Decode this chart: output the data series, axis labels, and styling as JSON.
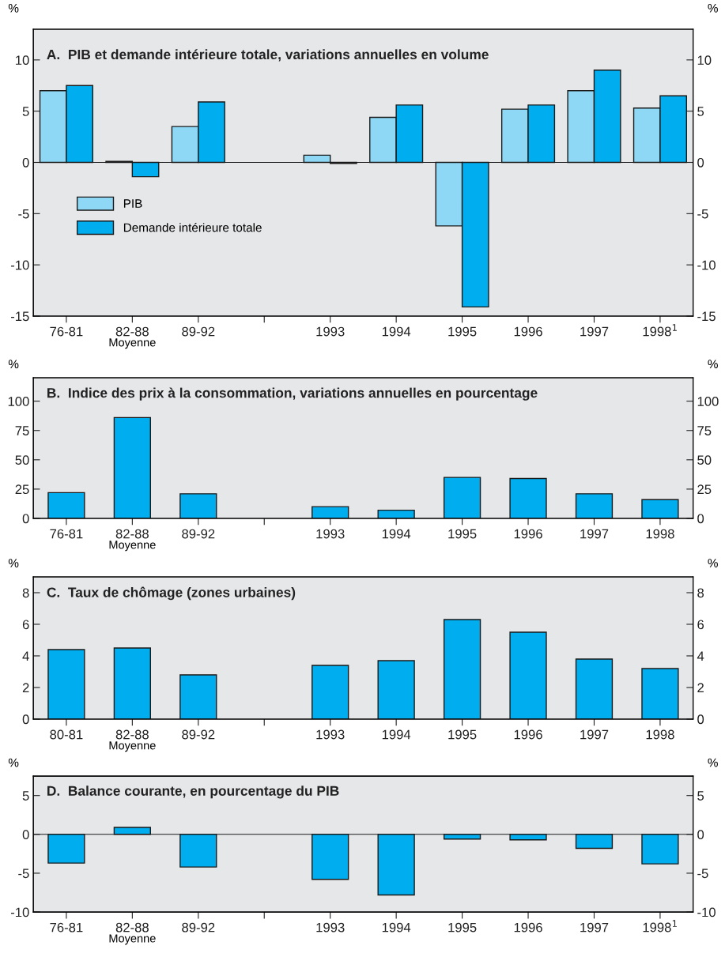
{
  "chart_data": [
    {
      "type": "bar",
      "title": "A.  PIB et demande intérieure totale, variations annuelles en volume",
      "ylabel": "%",
      "y2label": "%",
      "categories": [
        "76-81",
        "82-88",
        "89-92",
        null,
        "1993",
        "1994",
        "1995",
        "1996",
        "1997",
        "1998$^{1}$"
      ],
      "series": [
        {
          "name": "PIB",
          "color": "#8fd8f5",
          "values": [
            7.0,
            0.1,
            3.5,
            null,
            0.7,
            4.4,
            -6.2,
            5.2,
            7.0,
            5.3
          ]
        },
        {
          "name": "Demande intérieure totale",
          "color": "#00aeef",
          "values": [
            7.5,
            -1.4,
            5.9,
            null,
            -0.1,
            5.6,
            -14.1,
            5.6,
            9.0,
            6.5
          ]
        }
      ],
      "ylim": [
        -15,
        13
      ],
      "yticks": [
        -15,
        -10,
        -5,
        0,
        5,
        10
      ],
      "y2lim": [
        -15,
        13
      ],
      "y2ticks": [
        -15,
        -10,
        -5,
        0,
        5,
        10
      ],
      "annotations": [
        "Moyenne"
      ],
      "legend": "center left",
      "ref_lines": [
        {
          "axis": "y",
          "value": 0,
          "color": "#1a1a1a"
        }
      ],
      "grid": false
    },
    {
      "type": "bar",
      "title": "B.  Indice des prix à la consommation, variations annuelles en pourcentage",
      "ylabel": "%",
      "y2label": "%",
      "categories": [
        "76-81",
        "82-88",
        "89-92",
        null,
        "1993",
        "1994",
        "1995",
        "1996",
        "1997",
        "1998"
      ],
      "series": [
        {
          "color": "#00aeef",
          "values": [
            22,
            86,
            21,
            null,
            10,
            7,
            35,
            34,
            21,
            16
          ]
        }
      ],
      "ylim": [
        0,
        120
      ],
      "yticks": [
        0,
        25,
        50,
        75,
        100
      ],
      "y2lim": [
        0,
        120
      ],
      "y2ticks": [
        0,
        25,
        50,
        75,
        100
      ],
      "annotations": [
        "Moyenne"
      ],
      "grid": false
    },
    {
      "type": "bar",
      "title": "C.  Taux de chômage (zones urbaines)",
      "ylabel": "%",
      "y2label": "%",
      "categories": [
        "80-81",
        "82-88",
        "89-92",
        null,
        "1993",
        "1994",
        "1995",
        "1996",
        "1997",
        "1998"
      ],
      "series": [
        {
          "color": "#00aeef",
          "values": [
            4.4,
            4.5,
            2.8,
            null,
            3.4,
            3.7,
            6.3,
            5.5,
            3.8,
            3.2
          ]
        }
      ],
      "ylim": [
        0,
        9
      ],
      "yticks": [
        0,
        2,
        4,
        6,
        8
      ],
      "y2lim": [
        0,
        9
      ],
      "y2ticks": [
        0,
        2,
        4,
        6,
        8
      ],
      "annotations": [
        "Moyenne"
      ],
      "grid": false
    },
    {
      "type": "bar",
      "title": "D.  Balance courante, en pourcentage du PIB",
      "ylabel": "%",
      "y2label": "%",
      "categories": [
        "76-81",
        "82-88",
        "89-92",
        null,
        "1993",
        "1994",
        "1995",
        "1996",
        "1997",
        "1998$^{1}$"
      ],
      "series": [
        {
          "color": "#00aeef",
          "values": [
            -3.7,
            0.9,
            -4.2,
            null,
            -5.8,
            -7.8,
            -0.6,
            -0.7,
            -1.8,
            -3.8
          ]
        }
      ],
      "ylim": [
        -10,
        7.5
      ],
      "yticks": [
        -10,
        -5,
        0,
        5
      ],
      "y2lim": [
        -10,
        7.5
      ],
      "y2ticks": [
        -10,
        -5,
        0,
        5
      ],
      "annotations": [
        "Moyenne"
      ],
      "ref_lines": [
        {
          "axis": "y",
          "value": 0,
          "color": "#1a1a1a"
        }
      ],
      "grid": false
    }
  ]
}
